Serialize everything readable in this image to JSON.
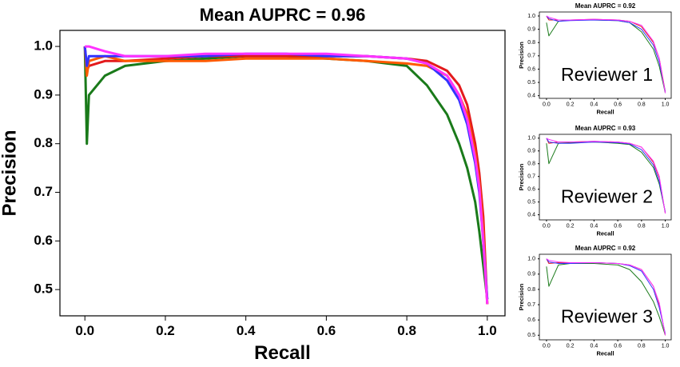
{
  "chart_data": [
    {
      "type": "line",
      "title": "Mean AUPRC = 0.96",
      "x_label": "Recall",
      "y_label": "Precision",
      "x": [
        0,
        0.005,
        0.01,
        0.05,
        0.1,
        0.2,
        0.3,
        0.4,
        0.5,
        0.6,
        0.7,
        0.8,
        0.85,
        0.9,
        0.93,
        0.95,
        0.97,
        0.98,
        0.99,
        1.0
      ],
      "series": [
        {
          "color": "#1a7a1a",
          "values": [
            1.0,
            0.8,
            0.9,
            0.94,
            0.96,
            0.97,
            0.975,
            0.98,
            0.98,
            0.975,
            0.97,
            0.96,
            0.92,
            0.86,
            0.8,
            0.75,
            0.68,
            0.62,
            0.55,
            0.48
          ]
        },
        {
          "color": "#e31a1c",
          "values": [
            1.0,
            0.95,
            0.96,
            0.97,
            0.97,
            0.975,
            0.98,
            0.98,
            0.98,
            0.98,
            0.98,
            0.975,
            0.97,
            0.95,
            0.92,
            0.88,
            0.8,
            0.74,
            0.65,
            0.47
          ]
        },
        {
          "color": "#ff5a00",
          "values": [
            1.0,
            0.94,
            0.97,
            0.98,
            0.97,
            0.97,
            0.97,
            0.975,
            0.975,
            0.975,
            0.97,
            0.965,
            0.96,
            0.94,
            0.9,
            0.86,
            0.78,
            0.72,
            0.62,
            0.47
          ]
        },
        {
          "color": "#3333ff",
          "values": [
            1.0,
            0.96,
            0.98,
            0.98,
            0.98,
            0.98,
            0.98,
            0.985,
            0.985,
            0.98,
            0.98,
            0.975,
            0.965,
            0.93,
            0.89,
            0.84,
            0.76,
            0.7,
            0.6,
            0.48
          ]
        },
        {
          "color": "#ff33ff",
          "values": [
            1.0,
            1.0,
            1.0,
            0.99,
            0.98,
            0.98,
            0.985,
            0.985,
            0.985,
            0.985,
            0.98,
            0.975,
            0.965,
            0.94,
            0.9,
            0.85,
            0.77,
            0.71,
            0.6,
            0.47
          ]
        }
      ],
      "xlim": [
        -0.062,
        1.044
      ],
      "ylim": [
        0.446,
        1.033
      ],
      "xticks": [
        {
          "value": 0,
          "label": "0.0"
        },
        0.2,
        0.4,
        0.6,
        0.8,
        {
          "value": 1,
          "label": "1.0"
        }
      ],
      "yticks": [
        0.5,
        0.6,
        0.7,
        0.8,
        0.9,
        {
          "value": 1,
          "label": "1.0"
        }
      ]
    },
    {
      "type": "line",
      "title": "Mean AUPRC = 0.92",
      "x_label": "Recall",
      "y_label": "Precision",
      "annotation": "Reviewer 1",
      "x": [
        0,
        0.02,
        0.1,
        0.2,
        0.4,
        0.6,
        0.7,
        0.8,
        0.9,
        0.95,
        1.0
      ],
      "series": [
        {
          "color": "#1a7a1a",
          "values": [
            0.95,
            0.85,
            0.96,
            0.97,
            0.97,
            0.965,
            0.95,
            0.88,
            0.75,
            0.62,
            0.42
          ]
        },
        {
          "color": "#e31a1c",
          "values": [
            1.0,
            0.97,
            0.97,
            0.97,
            0.975,
            0.97,
            0.96,
            0.92,
            0.8,
            0.68,
            0.43
          ]
        },
        {
          "color": "#3333ff",
          "values": [
            1.0,
            0.98,
            0.96,
            0.965,
            0.97,
            0.965,
            0.95,
            0.9,
            0.78,
            0.65,
            0.43
          ]
        },
        {
          "color": "#ff33ff",
          "values": [
            1.0,
            0.99,
            0.97,
            0.97,
            0.975,
            0.97,
            0.96,
            0.93,
            0.81,
            0.68,
            0.42
          ]
        }
      ],
      "xlim": [
        -0.06,
        1.05
      ],
      "ylim": [
        0.38,
        1.03
      ],
      "xticks": [
        {
          "value": 0,
          "label": "0.0"
        },
        0.2,
        0.4,
        0.6,
        0.8,
        {
          "value": 1,
          "label": "1.0"
        }
      ],
      "yticks": [
        0.4,
        0.5,
        0.6,
        0.7,
        0.8,
        0.9,
        {
          "value": 1,
          "label": "1.0"
        }
      ]
    },
    {
      "type": "line",
      "title": "Mean AUPRC = 0.93",
      "x_label": "Recall",
      "y_label": "Precision",
      "annotation": "Reviewer 2",
      "x": [
        0,
        0.02,
        0.1,
        0.2,
        0.4,
        0.6,
        0.7,
        0.8,
        0.9,
        0.95,
        1.0
      ],
      "series": [
        {
          "color": "#1a7a1a",
          "values": [
            0.96,
            0.8,
            0.96,
            0.965,
            0.97,
            0.96,
            0.95,
            0.89,
            0.77,
            0.64,
            0.42
          ]
        },
        {
          "color": "#e31a1c",
          "values": [
            1.0,
            0.96,
            0.97,
            0.97,
            0.975,
            0.97,
            0.96,
            0.93,
            0.81,
            0.69,
            0.41
          ]
        },
        {
          "color": "#3333ff",
          "values": [
            1.0,
            0.97,
            0.96,
            0.96,
            0.97,
            0.965,
            0.955,
            0.91,
            0.79,
            0.66,
            0.42
          ]
        },
        {
          "color": "#ff33ff",
          "values": [
            1.0,
            0.99,
            0.97,
            0.97,
            0.975,
            0.97,
            0.96,
            0.93,
            0.82,
            0.7,
            0.41
          ]
        }
      ],
      "xlim": [
        -0.06,
        1.05
      ],
      "ylim": [
        0.36,
        1.03
      ],
      "xticks": [
        {
          "value": 0,
          "label": "0.0"
        },
        0.2,
        0.4,
        0.6,
        0.8,
        {
          "value": 1,
          "label": "1.0"
        }
      ],
      "yticks": [
        0.4,
        0.5,
        0.6,
        0.7,
        0.8,
        0.9,
        {
          "value": 1,
          "label": "1.0"
        }
      ]
    },
    {
      "type": "line",
      "title": "Mean AUPRC = 0.92",
      "x_label": "Recall",
      "y_label": "Precision",
      "annotation": "Reviewer 3",
      "x": [
        0,
        0.02,
        0.1,
        0.2,
        0.4,
        0.6,
        0.7,
        0.8,
        0.9,
        0.95,
        1.0
      ],
      "series": [
        {
          "color": "#1a7a1a",
          "values": [
            0.95,
            0.82,
            0.96,
            0.97,
            0.97,
            0.96,
            0.93,
            0.85,
            0.72,
            0.62,
            0.5
          ]
        },
        {
          "color": "#e31a1c",
          "values": [
            1.0,
            0.97,
            0.975,
            0.975,
            0.975,
            0.97,
            0.96,
            0.93,
            0.82,
            0.7,
            0.5
          ]
        },
        {
          "color": "#3333ff",
          "values": [
            1.0,
            0.98,
            0.97,
            0.97,
            0.975,
            0.97,
            0.955,
            0.92,
            0.8,
            0.68,
            0.51
          ]
        },
        {
          "color": "#ff33ff",
          "values": [
            1.0,
            0.99,
            0.98,
            0.975,
            0.975,
            0.97,
            0.96,
            0.93,
            0.82,
            0.71,
            0.5
          ]
        }
      ],
      "xlim": [
        -0.06,
        1.05
      ],
      "ylim": [
        0.47,
        1.03
      ],
      "xticks": [
        {
          "value": 0,
          "label": "0.0"
        },
        0.2,
        0.4,
        0.6,
        0.8,
        {
          "value": 1,
          "label": "1.0"
        }
      ],
      "yticks": [
        0.5,
        0.6,
        0.7,
        0.8,
        0.9,
        {
          "value": 1,
          "label": "1.0"
        }
      ]
    }
  ]
}
